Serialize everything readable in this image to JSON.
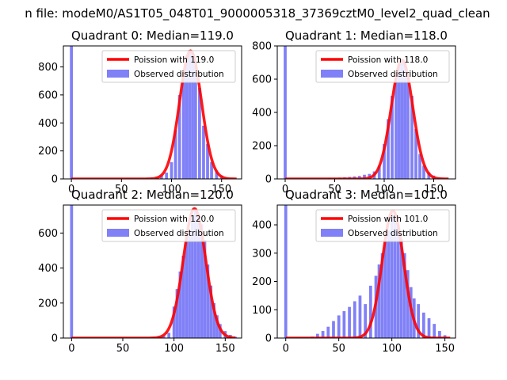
{
  "figure": {
    "suptitle": "n file: modeM0/AS1T05_048T01_9000005318_37369cztM0_level2_quad_clean"
  },
  "colors": {
    "hist": "#8080f7",
    "poisson": "#ff0000",
    "axes": "#000000"
  },
  "chart_data": [
    {
      "type": "bar",
      "title": "Quadrant 0: Median=119.0",
      "legend": [
        "Poission with 119.0",
        "Observed distribution"
      ],
      "legend_placement": "upper-right",
      "xlim": [
        -8,
        170
      ],
      "ylim": [
        0,
        950
      ],
      "xticks": [
        0,
        50,
        100,
        150
      ],
      "yticks": [
        0,
        200,
        400,
        600,
        800
      ],
      "median": 119,
      "poisson_peak": 915,
      "poisson_range": [
        0,
        165
      ],
      "hist": [
        [
          0,
          950
        ],
        [
          65,
          2
        ],
        [
          70,
          4
        ],
        [
          75,
          6
        ],
        [
          80,
          10
        ],
        [
          85,
          15
        ],
        [
          90,
          25
        ],
        [
          95,
          45
        ],
        [
          100,
          120
        ],
        [
          104,
          350
        ],
        [
          108,
          600
        ],
        [
          112,
          780
        ],
        [
          115,
          880
        ],
        [
          118,
          920
        ],
        [
          121,
          900
        ],
        [
          124,
          810
        ],
        [
          128,
          650
        ],
        [
          132,
          380
        ],
        [
          136,
          250
        ],
        [
          140,
          120
        ],
        [
          145,
          60
        ],
        [
          150,
          25
        ],
        [
          155,
          10
        ],
        [
          160,
          4
        ]
      ]
    },
    {
      "type": "bar",
      "title": "Quadrant 1: Median=118.0",
      "legend": [
        "Poission with 118.0",
        "Observed distribution"
      ],
      "legend_placement": "upper-right",
      "xlim": [
        -8,
        172
      ],
      "ylim": [
        0,
        800
      ],
      "xticks": [
        0,
        50,
        100,
        150
      ],
      "yticks": [
        0,
        200,
        400,
        600,
        800
      ],
      "median": 118,
      "poisson_peak": 715,
      "poisson_range": [
        0,
        165
      ],
      "hist": [
        [
          0,
          800
        ],
        [
          45,
          5
        ],
        [
          50,
          6
        ],
        [
          55,
          8
        ],
        [
          60,
          10
        ],
        [
          65,
          12
        ],
        [
          70,
          15
        ],
        [
          75,
          18
        ],
        [
          80,
          25
        ],
        [
          85,
          30
        ],
        [
          90,
          45
        ],
        [
          95,
          80
        ],
        [
          100,
          210
        ],
        [
          104,
          360
        ],
        [
          108,
          500
        ],
        [
          112,
          620
        ],
        [
          115,
          690
        ],
        [
          118,
          720
        ],
        [
          121,
          700
        ],
        [
          124,
          620
        ],
        [
          128,
          500
        ],
        [
          132,
          300
        ],
        [
          136,
          150
        ],
        [
          140,
          80
        ],
        [
          145,
          40
        ],
        [
          150,
          20
        ],
        [
          155,
          8
        ],
        [
          160,
          3
        ]
      ]
    },
    {
      "type": "bar",
      "title": "Quadrant 2: Median=120.0",
      "legend": [
        "Poission with 120.0",
        "Observed distribution"
      ],
      "legend_placement": "upper-right",
      "xlim": [
        -8,
        166
      ],
      "ylim": [
        0,
        760
      ],
      "xticks": [
        0,
        50,
        100,
        150
      ],
      "yticks": [
        0,
        200,
        400,
        600
      ],
      "median": 120,
      "poisson_peak": 740,
      "poisson_range": [
        0,
        160
      ],
      "hist": [
        [
          0,
          760
        ],
        [
          70,
          2
        ],
        [
          75,
          3
        ],
        [
          80,
          5
        ],
        [
          85,
          8
        ],
        [
          90,
          14
        ],
        [
          95,
          30
        ],
        [
          100,
          180
        ],
        [
          103,
          280
        ],
        [
          106,
          380
        ],
        [
          109,
          470
        ],
        [
          112,
          550
        ],
        [
          115,
          620
        ],
        [
          118,
          700
        ],
        [
          121,
          730
        ],
        [
          124,
          710
        ],
        [
          127,
          650
        ],
        [
          130,
          560
        ],
        [
          133,
          420
        ],
        [
          136,
          300
        ],
        [
          139,
          200
        ],
        [
          142,
          130
        ],
        [
          145,
          80
        ],
        [
          150,
          40
        ],
        [
          155,
          18
        ],
        [
          160,
          7
        ]
      ]
    },
    {
      "type": "bar",
      "title": "Quadrant 3: Median=101.0",
      "legend": [
        "Poission with 101.0",
        "Observed distribution"
      ],
      "legend_placement": "upper-right",
      "xlim": [
        -8,
        160
      ],
      "ylim": [
        0,
        470
      ],
      "xticks": [
        0,
        50,
        100,
        150
      ],
      "yticks": [
        0,
        100,
        200,
        300,
        400
      ],
      "median": 101,
      "poisson_peak": 450,
      "poisson_range": [
        0,
        155
      ],
      "hist": [
        [
          0,
          470
        ],
        [
          20,
          2
        ],
        [
          25,
          5
        ],
        [
          30,
          15
        ],
        [
          35,
          25
        ],
        [
          40,
          40
        ],
        [
          45,
          60
        ],
        [
          50,
          80
        ],
        [
          55,
          95
        ],
        [
          60,
          110
        ],
        [
          65,
          130
        ],
        [
          70,
          150
        ],
        [
          75,
          120
        ],
        [
          80,
          185
        ],
        [
          85,
          220
        ],
        [
          88,
          260
        ],
        [
          91,
          300
        ],
        [
          94,
          340
        ],
        [
          97,
          380
        ],
        [
          100,
          440
        ],
        [
          103,
          430
        ],
        [
          106,
          400
        ],
        [
          109,
          350
        ],
        [
          112,
          300
        ],
        [
          115,
          240
        ],
        [
          118,
          180
        ],
        [
          121,
          140
        ],
        [
          125,
          120
        ],
        [
          130,
          90
        ],
        [
          135,
          70
        ],
        [
          140,
          50
        ],
        [
          145,
          25
        ],
        [
          150,
          10
        ]
      ]
    }
  ]
}
